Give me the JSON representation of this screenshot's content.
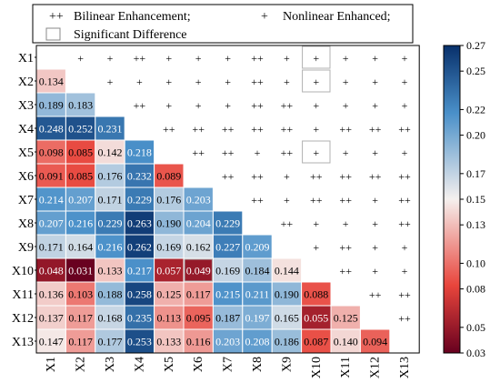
{
  "legend": {
    "items": [
      {
        "symbol": "++",
        "label": "Bilinear Enhancement;"
      },
      {
        "symbol": "+",
        "label": "Nonlinear Enhanced;"
      },
      {
        "symbol": "box",
        "label": "Significant Difference"
      }
    ]
  },
  "chart_data": {
    "type": "heatmap",
    "variables": [
      "X1",
      "X2",
      "X3",
      "X4",
      "X5",
      "X6",
      "X7",
      "X8",
      "X9",
      "X10",
      "X11",
      "X12",
      "X13"
    ],
    "lower_triangle_values": [
      [],
      [
        0.134
      ],
      [
        0.189,
        0.183
      ],
      [
        0.248,
        0.252,
        0.231
      ],
      [
        0.098,
        0.085,
        0.142,
        0.218
      ],
      [
        0.091,
        0.085,
        0.176,
        0.232,
        0.089
      ],
      [
        0.214,
        0.207,
        0.171,
        0.229,
        0.176,
        0.203
      ],
      [
        0.207,
        0.216,
        0.229,
        0.263,
        0.19,
        0.204,
        0.229
      ],
      [
        0.171,
        0.164,
        0.216,
        0.262,
        0.169,
        0.162,
        0.227,
        0.209
      ],
      [
        0.048,
        0.031,
        0.133,
        0.217,
        0.057,
        0.049,
        0.169,
        0.184,
        0.144
      ],
      [
        0.136,
        0.103,
        0.188,
        0.258,
        0.125,
        0.117,
        0.215,
        0.211,
        0.19,
        0.088
      ],
      [
        0.137,
        0.117,
        0.168,
        0.235,
        0.113,
        0.095,
        0.187,
        0.197,
        0.165,
        0.055,
        0.125
      ],
      [
        0.147,
        0.117,
        0.177,
        0.253,
        0.133,
        0.116,
        0.203,
        0.208,
        0.186,
        0.087,
        0.14,
        0.094
      ]
    ],
    "upper_triangle_symbols": [
      [
        "+",
        "+",
        "++",
        "+",
        "+",
        "+",
        "++",
        "+",
        "+",
        "+",
        "+",
        "+"
      ],
      [
        "+",
        "+",
        "+",
        "+",
        "+",
        "++",
        "+",
        "+",
        "+",
        "+",
        "+"
      ],
      [
        "++",
        "+",
        "+",
        "+",
        "++",
        "++",
        "+",
        "+",
        "+",
        "+"
      ],
      [
        "++",
        "++",
        "++",
        "++",
        "++",
        "+",
        "++",
        "++",
        "++"
      ],
      [
        "++",
        "++",
        "+",
        "++",
        "+",
        "+",
        "+",
        "+"
      ],
      [
        "++",
        "++",
        "+",
        "++",
        "++",
        "++",
        "++"
      ],
      [
        "++",
        "+",
        "++",
        "++",
        "+",
        "++"
      ],
      [
        "++",
        "+",
        "+",
        "+",
        "++"
      ],
      [
        "+",
        "++",
        "+",
        "+"
      ],
      [
        "++",
        "+",
        "+"
      ],
      [
        "++",
        "++"
      ],
      [
        "++"
      ]
    ],
    "significant_cells": [
      [
        0,
        9
      ],
      [
        1,
        9
      ],
      [
        4,
        9
      ],
      [
        9,
        5
      ]
    ],
    "colorbar": {
      "ticks": [
        0.03,
        0.05,
        0.08,
        0.1,
        0.13,
        0.15,
        0.17,
        0.2,
        0.22,
        0.25,
        0.27
      ],
      "tick_labels": [
        "0.03",
        "0.05",
        "0.08",
        "0.10",
        "0.13",
        "0.15",
        "0.17",
        "0.20",
        "0.22",
        "0.25",
        "0.27"
      ],
      "range": [
        0.03,
        0.27
      ],
      "colormap": "red-white-blue",
      "colors": {
        "low": "#67001f",
        "mid_low": "#e8453c",
        "mid": "#f5f0ee",
        "mid_high": "#4a90c9",
        "high": "#08306b"
      }
    }
  }
}
